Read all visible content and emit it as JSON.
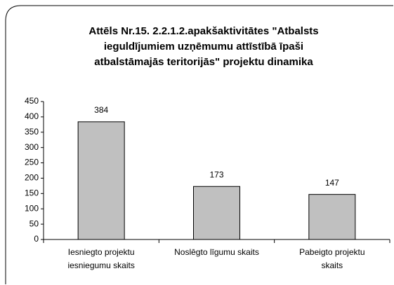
{
  "chart_data": {
    "type": "bar",
    "title": "Attēls Nr.15. 2.2.1.2.apakšaktivitātes \"Atbalsts ieguldījumiem uzņēmumu attīstībā īpaši atbalstāmajās teritorijās\" projektu dinamika",
    "categories": [
      "Iesniegto projektu iesniegumu skaits",
      "Noslēgto līgumu skaits",
      "Pabeigto projektu skaits"
    ],
    "values": [
      384,
      173,
      147
    ],
    "color": "#c0c0c0",
    "ylim": [
      0,
      450
    ],
    "yticks": [
      0,
      50,
      100,
      150,
      200,
      250,
      300,
      350,
      400,
      450
    ],
    "grid": false
  }
}
